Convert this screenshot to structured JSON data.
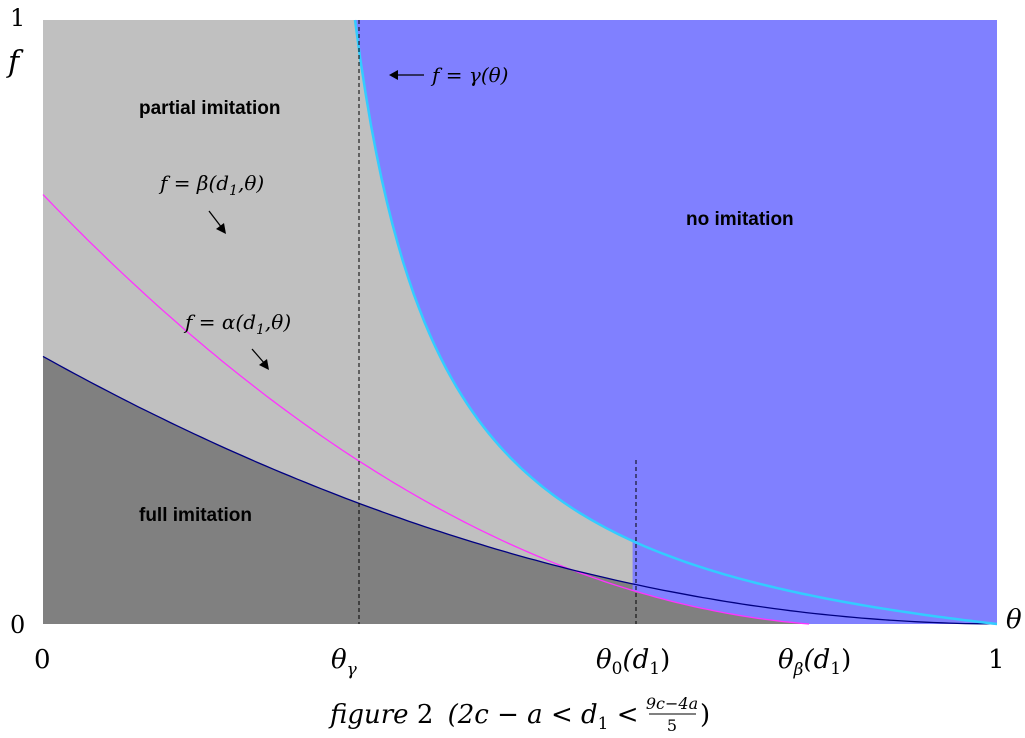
{
  "figure": {
    "axes": {
      "y_label": "f",
      "x_label": "θ",
      "y_ticks": [
        "1",
        "0"
      ],
      "x_ticks": {
        "zero": "0",
        "theta_gamma_base": "θ",
        "theta_gamma_sub": "γ",
        "theta_0_base": "θ",
        "theta_0_sub": "0",
        "theta_0_arg": "(d",
        "theta_0_arg_sub": "1",
        "theta_0_close": ")",
        "theta_beta_base": "θ",
        "theta_beta_sub": "β",
        "theta_beta_arg": "(d",
        "theta_beta_arg_sub": "1",
        "theta_beta_close": ")",
        "one": "1"
      }
    },
    "regions": {
      "partial": "partial imitation",
      "no": "no imitation",
      "full": "full imitation"
    },
    "curve_labels": {
      "gamma": {
        "lhs": "f = ",
        "fn": "γ",
        "args": "(θ)"
      },
      "beta": {
        "lhs": "f = ",
        "fn": "β",
        "open": "(d",
        "sub": "1",
        "rest": ",θ)"
      },
      "alpha": {
        "lhs": "f = ",
        "fn": "α",
        "open": "(d",
        "sub": "1",
        "rest": ",θ)"
      }
    },
    "caption": {
      "word": "figure",
      "num": "2",
      "cond_left": "(2c − a < d",
      "cond_sub": "1",
      "cond_mid": " < ",
      "frac_num": "9c−4a",
      "frac_den": "5",
      "cond_right": ")"
    },
    "colors": {
      "no_imitation": "#8080ff",
      "partial_imitation": "#c0c0c0",
      "full_imitation": "#808080",
      "gamma_curve": "#33ccff",
      "beta_curve": "#ff33ff",
      "alpha_curve": "#000080",
      "guide_lines": "#000000"
    },
    "curve_params": {
      "theta_gamma": 0.327,
      "theta_0": 0.618,
      "theta_beta": 0.803,
      "gamma_k": 0.093,
      "beta_at_0": 0.711,
      "alpha_at_0": 0.443,
      "f_at_theta_0": 0.272
    }
  }
}
